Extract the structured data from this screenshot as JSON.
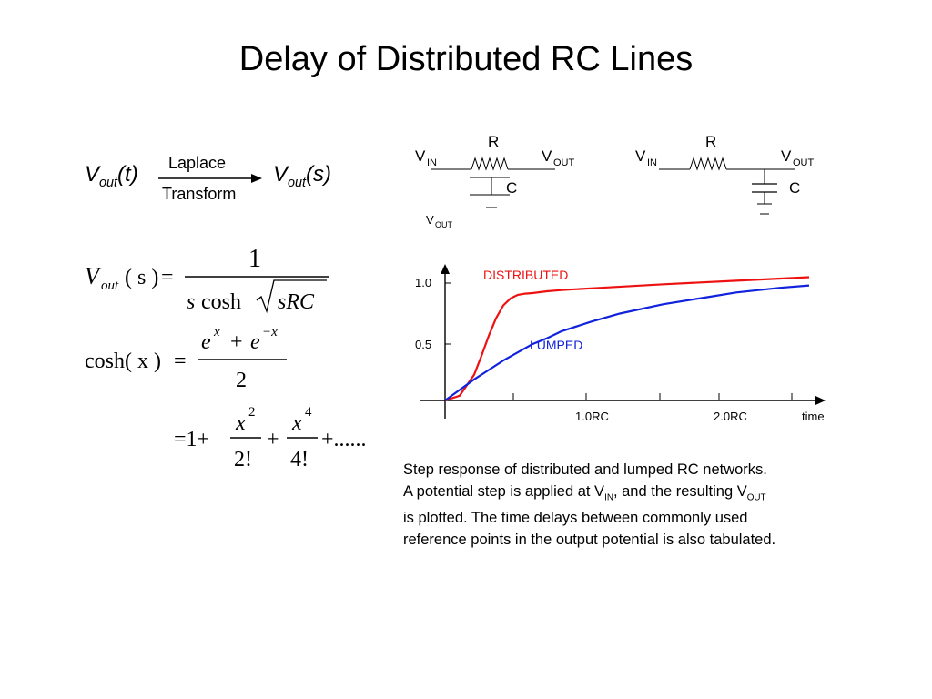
{
  "slide": {
    "title": "Delay of Distributed RC Lines"
  },
  "transform": {
    "left": "V",
    "left_sub": "out",
    "left_arg": "(t)",
    "arrow_top": "Laplace",
    "arrow_bottom": "Transform",
    "right": "V",
    "right_sub": "out",
    "right_arg": "(s)"
  },
  "equations": {
    "eq1": {
      "lhs_v": "V",
      "lhs_sub": "out",
      "lhs_arg": "( s )",
      "equals": "=",
      "numerator": "1",
      "den_s": "s",
      "den_cosh": "cosh",
      "den_root": "sRC"
    },
    "eq2": {
      "lhs": "cosh( x )",
      "equals": "=",
      "num_e1": "e",
      "num_exp1": "x",
      "num_plus": "+",
      "num_e2": "e",
      "num_exp2": "−x",
      "denominator": "2"
    },
    "eq3": {
      "prefix": "=1+",
      "t1_num": "x",
      "t1_exp": "2",
      "t1_den": "2!",
      "plus": "+",
      "t2_num": "x",
      "t2_exp": "4",
      "t2_den": "4!",
      "suffix": "+......"
    }
  },
  "circuits": {
    "distributed": {
      "vin": "V",
      "vin_sub": "IN",
      "vout": "V",
      "vout_sub": "OUT",
      "r": "R",
      "c": "C",
      "vout2": "V",
      "vout2_sub": "OUT"
    },
    "lumped": {
      "vin": "V",
      "vin_sub": "IN",
      "vout": "V",
      "vout_sub": "OUT",
      "r": "R",
      "c": "C"
    }
  },
  "chart_data": {
    "type": "line",
    "xlabel": "time",
    "ylabel": "",
    "x_ticks": [
      "1.0RC",
      "2.0RC"
    ],
    "y_ticks": [
      "0.5",
      "1.0"
    ],
    "xlim": [
      0,
      2.6
    ],
    "ylim": [
      0,
      1.1
    ],
    "series": [
      {
        "name": "DISTRIBUTED",
        "color": "#ee1111",
        "x": [
          0,
          0.1,
          0.2,
          0.25,
          0.3,
          0.35,
          0.4,
          0.45,
          0.5,
          0.55,
          0.6,
          0.7,
          0.8,
          1.0,
          1.5,
          2.0,
          2.5
        ],
        "y": [
          0,
          0.04,
          0.22,
          0.38,
          0.55,
          0.7,
          0.81,
          0.87,
          0.9,
          0.91,
          0.915,
          0.93,
          0.94,
          0.955,
          0.99,
          1.02,
          1.05
        ]
      },
      {
        "name": "LUMPED",
        "color": "#1122dd",
        "x": [
          0,
          0.1,
          0.2,
          0.3,
          0.4,
          0.5,
          0.6,
          0.7,
          0.8,
          1.0,
          1.2,
          1.5,
          1.8,
          2.0,
          2.3,
          2.5
        ],
        "y": [
          0,
          0.09,
          0.18,
          0.26,
          0.34,
          0.41,
          0.48,
          0.53,
          0.59,
          0.67,
          0.74,
          0.82,
          0.88,
          0.92,
          0.96,
          0.98
        ]
      }
    ]
  },
  "caption": {
    "line1": "Step response of distributed and lumped RC networks.",
    "line2_a": "A potential step is applied at V",
    "line2_sub1": "IN",
    "line2_b": ", and the resulting V",
    "line2_sub2": "OUT",
    "line3": "is plotted.  The time delays between commonly used",
    "line4": "reference points in the output potential is also tabulated."
  }
}
